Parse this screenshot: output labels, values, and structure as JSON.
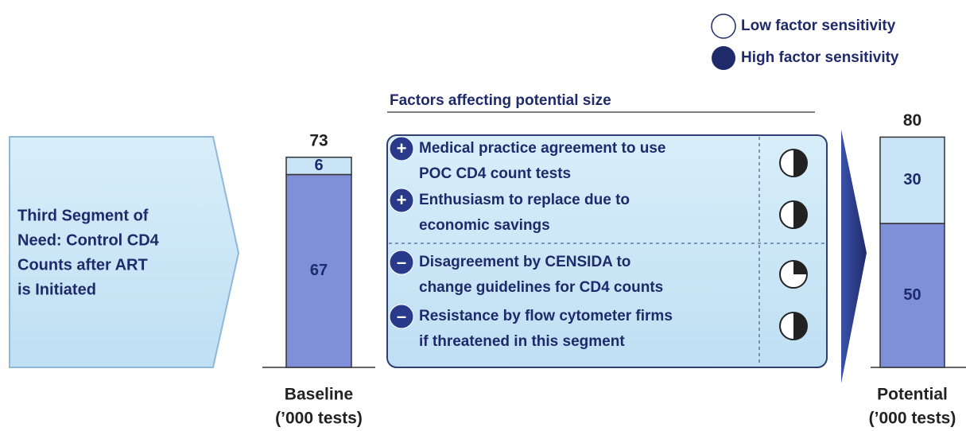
{
  "legend": [
    {
      "label": "Low factor sensitivity"
    },
    {
      "label": "High factor sensitivity"
    }
  ],
  "factors_title": "Factors affecting potential size",
  "segment_label": [
    "Third Segment of",
    "Need: Control CD4",
    "Counts after ART",
    "is Initiated"
  ],
  "baseline": {
    "total": 73,
    "segments": [
      67,
      6
    ],
    "label": "Baseline",
    "unit": "(’000 tests)"
  },
  "potential": {
    "total": 80,
    "segments": [
      50,
      30
    ],
    "label": "Potential",
    "unit": "(’000 tests)"
  },
  "factors": [
    {
      "sign": "+",
      "lines": [
        "Medical practice agreement to use",
        "POC CD4 count tests"
      ],
      "sensitivity": 0.5
    },
    {
      "sign": "+",
      "lines": [
        "Enthusiasm to replace due to",
        "economic savings"
      ],
      "sensitivity": 0.5
    },
    {
      "sign": "–",
      "lines": [
        "Disagreement by CENSIDA to",
        "change guidelines for CD4 counts"
      ],
      "sensitivity": 0.25
    },
    {
      "sign": "–",
      "lines": [
        "Resistance by flow cytometer firms",
        "if threatened in this segment"
      ],
      "sensitivity": 0.5
    }
  ]
}
